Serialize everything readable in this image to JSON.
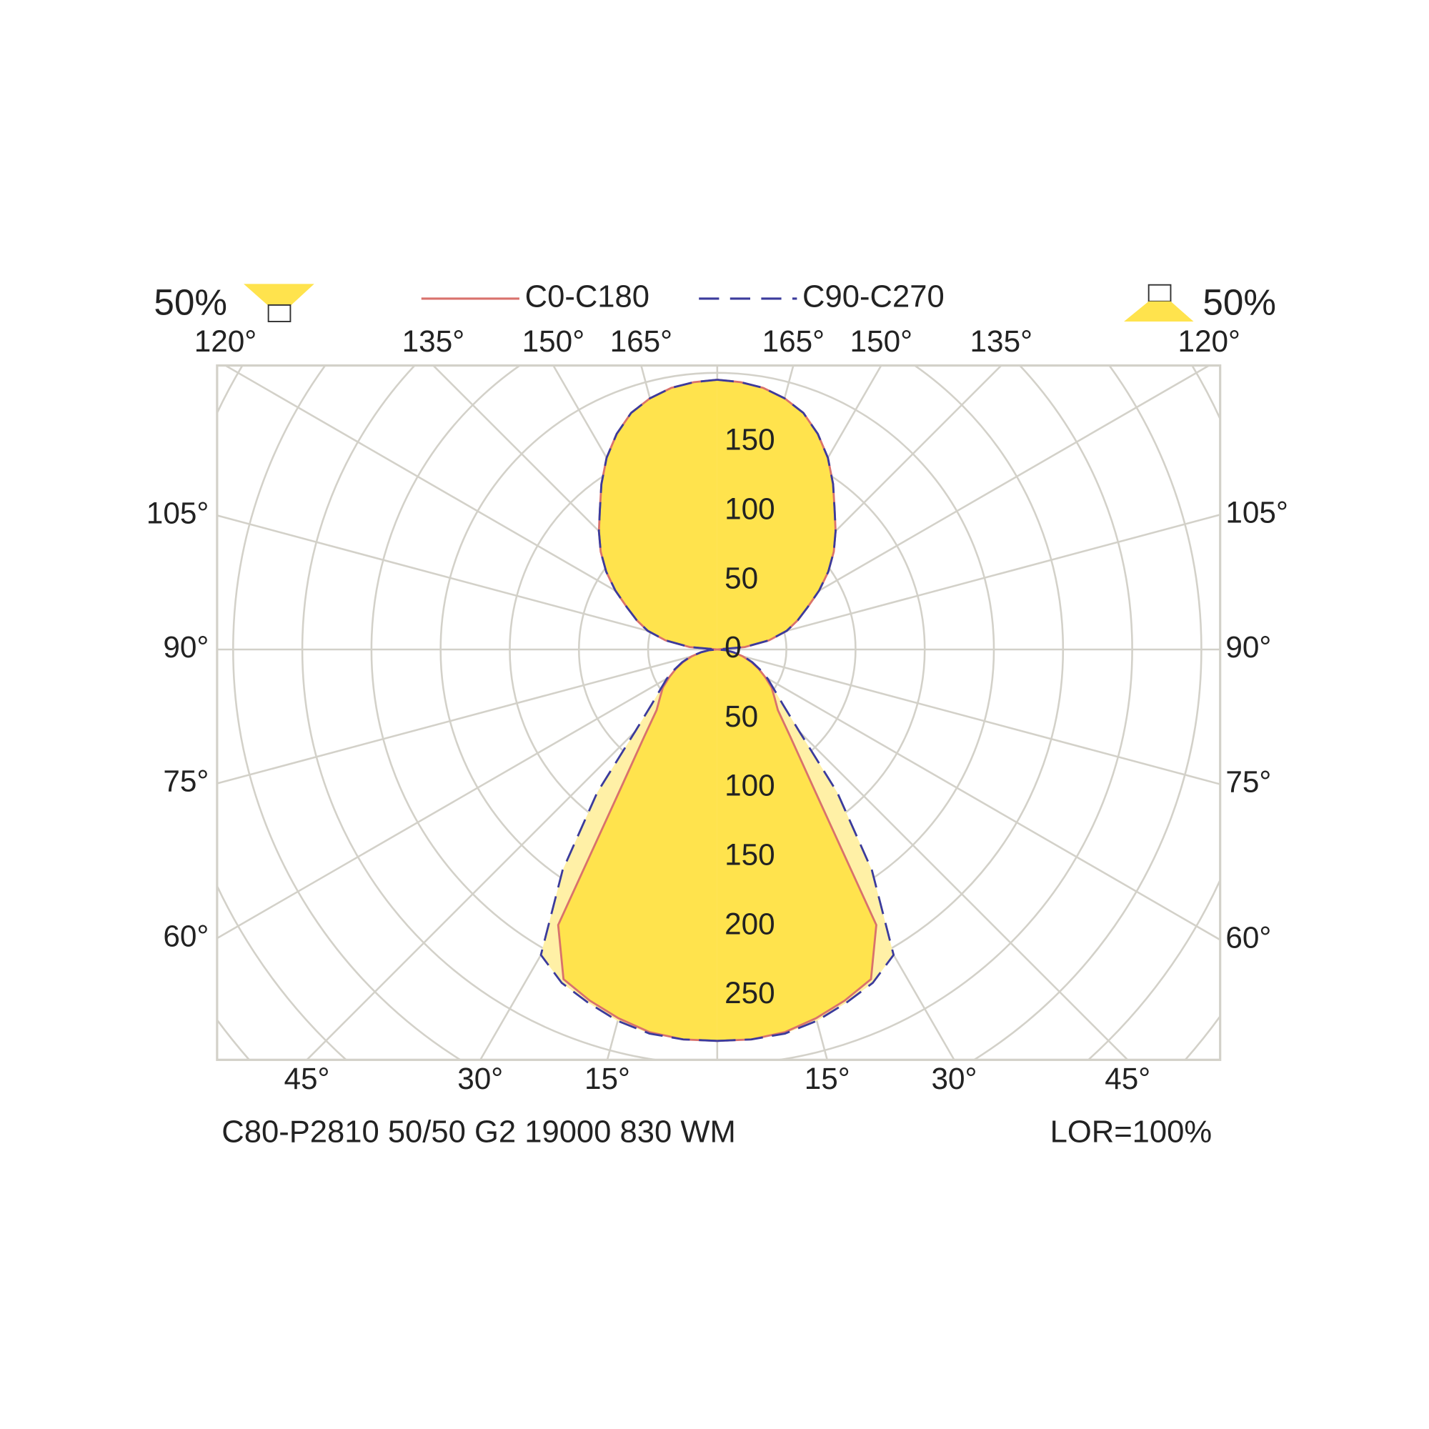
{
  "chart_data": {
    "type": "polar",
    "angles": [
      0,
      5,
      10,
      15,
      20,
      25,
      30,
      35,
      40,
      45,
      50,
      55,
      60,
      65,
      70,
      75,
      80,
      85,
      90,
      95,
      100,
      105,
      110,
      115,
      120,
      125,
      130,
      135,
      140,
      145,
      150,
      155,
      160,
      165,
      170,
      175,
      180
    ],
    "series": [
      {
        "name": "C0-C180",
        "color": "#d9726c",
        "fill": "#ffe34d",
        "dashed": false,
        "values": [
          283,
          283,
          281,
          276,
          270,
          263,
          230,
          120,
          82,
          62,
          54,
          48,
          40,
          33,
          26,
          19,
          12,
          6,
          0,
          20,
          38,
          52,
          62,
          72,
          85,
          98,
          110,
          121,
          132,
          146,
          160,
          172,
          182,
          188,
          192,
          194,
          195
        ]
      },
      {
        "name": "C90-C270",
        "color": "#3b3b9c",
        "fill": "#fff0a6",
        "dashed": true,
        "values": [
          283,
          283,
          282,
          278,
          272,
          266,
          255,
          195,
          135,
          84,
          62,
          50,
          42,
          34,
          27,
          20,
          12,
          6,
          0,
          20,
          38,
          52,
          62,
          72,
          85,
          98,
          110,
          121,
          132,
          146,
          160,
          172,
          182,
          188,
          192,
          194,
          195
        ]
      }
    ],
    "rlim": [
      0,
      300
    ],
    "rgrid": [
      50,
      100,
      150,
      200,
      250,
      300,
      350,
      400,
      450,
      500,
      550,
      600
    ],
    "rticks_upper": [
      0,
      50,
      100,
      150
    ],
    "rticks_lower": [
      50,
      100,
      150,
      200,
      250
    ],
    "angle_ticks": [
      {
        "value": 15,
        "label": "15°"
      },
      {
        "value": 30,
        "label": "30°"
      },
      {
        "value": 45,
        "label": "45°"
      },
      {
        "value": 60,
        "label": "60°"
      },
      {
        "value": 75,
        "label": "75°"
      },
      {
        "value": 90,
        "label": "90°"
      },
      {
        "value": 105,
        "label": "105°"
      },
      {
        "value": 120,
        "label": "120°"
      },
      {
        "value": 135,
        "label": "135°"
      },
      {
        "value": 150,
        "label": "150°"
      },
      {
        "value": 165,
        "label": "165°"
      }
    ],
    "grid": true,
    "downward_flux": "50%",
    "upward_flux": "50%",
    "luminaire": "C80-P2810 50/50 G2 19000 830 WM",
    "lor": "LOR=100%"
  }
}
